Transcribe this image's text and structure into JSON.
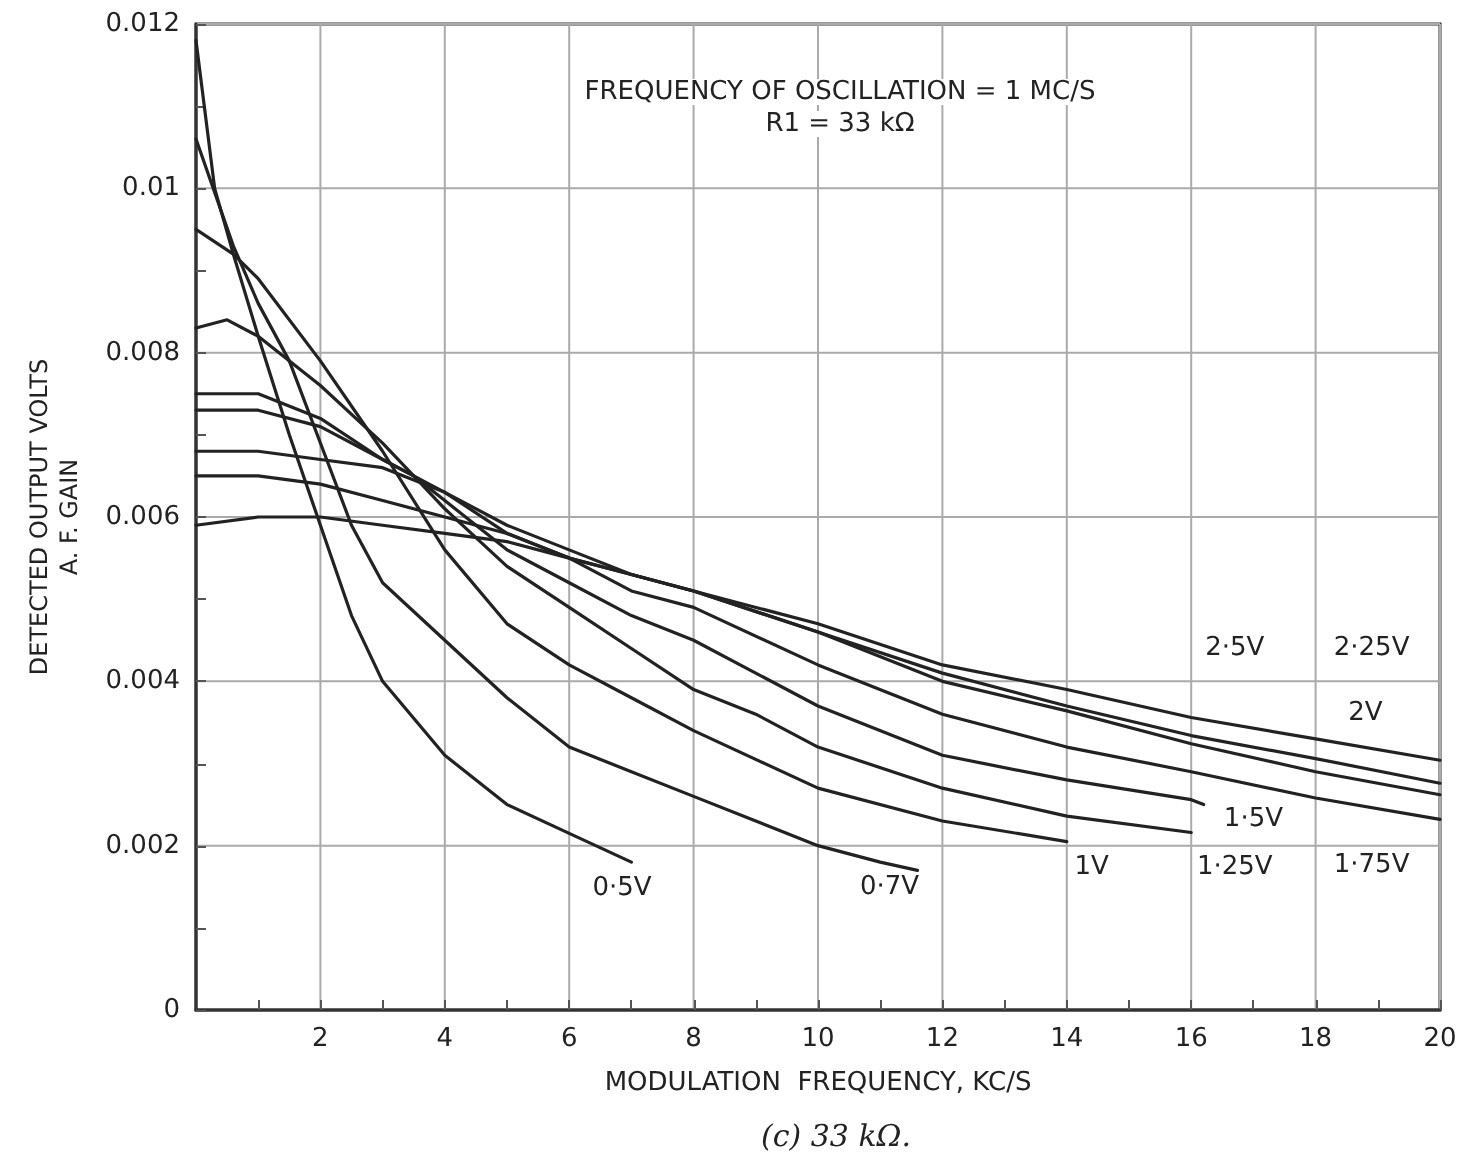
{
  "chart_data": {
    "type": "line",
    "xlabel": "MODULATION  FREQUENCY, KC/S",
    "ylabel": "DETECTED OUTPUT VOLTS\nA. F. GAIN",
    "xlim": [
      0,
      20
    ],
    "xticks": [
      {
        "value": 1,
        "label": null
      },
      2,
      {
        "value": 3,
        "label": null
      },
      4,
      {
        "value": 5,
        "label": null
      },
      6,
      {
        "value": 7,
        "label": null
      },
      8,
      {
        "value": 9,
        "label": null
      },
      10,
      {
        "value": 11,
        "label": null
      },
      12,
      {
        "value": 13,
        "label": null
      },
      14,
      {
        "value": 15,
        "label": null
      },
      16,
      {
        "value": 17,
        "label": null
      },
      18,
      {
        "value": 19,
        "label": null
      },
      20
    ],
    "ylim": [
      0,
      0.012
    ],
    "yticks": [
      0,
      {
        "value": 0.001,
        "label": null
      },
      0.002,
      {
        "value": 0.003,
        "label": null
      },
      0.004,
      {
        "value": 0.005,
        "label": null
      },
      0.006,
      {
        "value": 0.007,
        "label": null
      },
      0.008,
      {
        "value": 0.009,
        "label": null
      },
      0.01,
      {
        "value": 0.011,
        "label": null
      },
      0.012
    ],
    "grid": true,
    "marker": "none",
    "line_style": "solid",
    "series": [
      {
        "color": "#222222",
        "x": [
          0,
          0.3,
          0.6,
          1,
          1.5,
          2,
          2.5,
          3,
          4,
          5,
          6,
          7
        ],
        "values": [
          0.0118,
          0.01,
          0.0092,
          0.0082,
          0.007,
          0.0059,
          0.0048,
          0.004,
          0.0031,
          0.0025,
          0.00215,
          0.0018
        ]
      },
      {
        "color": "#222222",
        "x": [
          0,
          0.6,
          1,
          1.5,
          2,
          2.5,
          3,
          4,
          5,
          6,
          7,
          8,
          9,
          10,
          11,
          11.6
        ],
        "values": [
          0.0106,
          0.0093,
          0.0086,
          0.0079,
          0.0069,
          0.0059,
          0.0052,
          0.0045,
          0.0038,
          0.0032,
          0.0029,
          0.0026,
          0.0023,
          0.002,
          0.0018,
          0.0017
        ]
      },
      {
        "color": "#222222",
        "x": [
          0,
          0.6,
          1,
          2,
          3,
          4,
          5,
          6,
          7,
          8,
          10,
          12,
          14
        ],
        "values": [
          0.0095,
          0.0092,
          0.0089,
          0.0079,
          0.0068,
          0.0056,
          0.0047,
          0.0042,
          0.0038,
          0.0034,
          0.0027,
          0.0023,
          0.00205
        ]
      },
      {
        "color": "#222222",
        "x": [
          0,
          0.5,
          1,
          2,
          3,
          3.5,
          4,
          5,
          6,
          7,
          8,
          9,
          10,
          12,
          14,
          16
        ],
        "values": [
          0.0083,
          0.0084,
          0.0082,
          0.0076,
          0.0069,
          0.0065,
          0.0061,
          0.0054,
          0.0049,
          0.0044,
          0.0039,
          0.0036,
          0.0032,
          0.0027,
          0.00236,
          0.00216
        ]
      },
      {
        "color": "#222222",
        "x": [
          0,
          1,
          2,
          3,
          3.5,
          4,
          5,
          6,
          7,
          8,
          10,
          12,
          14,
          16,
          16.2
        ],
        "values": [
          0.0075,
          0.0075,
          0.0072,
          0.0067,
          0.0065,
          0.0062,
          0.0056,
          0.0052,
          0.0048,
          0.0045,
          0.0037,
          0.0031,
          0.0028,
          0.00256,
          0.0025
        ]
      },
      {
        "color": "#222222",
        "x": [
          0,
          1,
          2,
          3,
          3.5,
          4,
          5,
          6,
          7,
          8,
          10,
          12,
          14,
          16,
          18,
          20
        ],
        "values": [
          0.0073,
          0.0073,
          0.0071,
          0.0067,
          0.0065,
          0.0063,
          0.0058,
          0.0055,
          0.0051,
          0.0049,
          0.0042,
          0.0036,
          0.0032,
          0.0029,
          0.00258,
          0.00232
        ]
      },
      {
        "color": "#222222",
        "x": [
          0,
          1,
          2,
          3,
          4,
          5,
          6,
          7,
          8,
          10,
          12,
          14,
          16,
          18,
          20
        ],
        "values": [
          0.0068,
          0.0068,
          0.0067,
          0.0066,
          0.0063,
          0.0059,
          0.0056,
          0.0053,
          0.0051,
          0.0046,
          0.004,
          0.00364,
          0.00324,
          0.0029,
          0.00262
        ]
      },
      {
        "color": "#222222",
        "x": [
          0,
          1,
          2,
          3,
          4,
          5,
          6,
          7,
          8,
          10,
          12,
          14,
          16,
          18,
          20
        ],
        "values": [
          0.0065,
          0.0065,
          0.0064,
          0.0062,
          0.006,
          0.0058,
          0.0055,
          0.0053,
          0.0051,
          0.0046,
          0.0041,
          0.0037,
          0.00334,
          0.00306,
          0.00276
        ]
      },
      {
        "color": "#222222",
        "x": [
          0,
          1,
          2,
          3,
          4,
          5,
          6,
          7,
          8,
          10,
          12,
          14,
          16,
          18,
          20
        ],
        "values": [
          0.0059,
          0.006,
          0.006,
          0.0059,
          0.0058,
          0.0057,
          0.0055,
          0.0053,
          0.0051,
          0.0047,
          0.0042,
          0.0039,
          0.00356,
          0.0033,
          0.00304
        ]
      }
    ],
    "annotations": [
      "FREQUENCY OF OSCILLATION = 1 MC/S",
      "R1 = 33 kΩ",
      {
        "text": "0·5V",
        "x": 6.85,
        "y": 0.00148
      },
      {
        "text": "0·7V",
        "x": 11.15,
        "y": 0.0015
      },
      {
        "text": "1V",
        "x": 14.4,
        "y": 0.00174
      },
      {
        "text": "1·25V",
        "x": 16.7,
        "y": 0.00174
      },
      {
        "text": "1·5V",
        "x": 17.0,
        "y": 0.00233
      },
      {
        "text": "1·75V",
        "x": 18.9,
        "y": 0.00176
      },
      {
        "text": "2V",
        "x": 18.8,
        "y": 0.00362
      },
      {
        "text": "2·25V",
        "x": 18.9,
        "y": 0.0044
      },
      {
        "text": "2·5V",
        "x": 16.7,
        "y": 0.0044
      },
      "(c) 33 kΩ."
    ]
  }
}
